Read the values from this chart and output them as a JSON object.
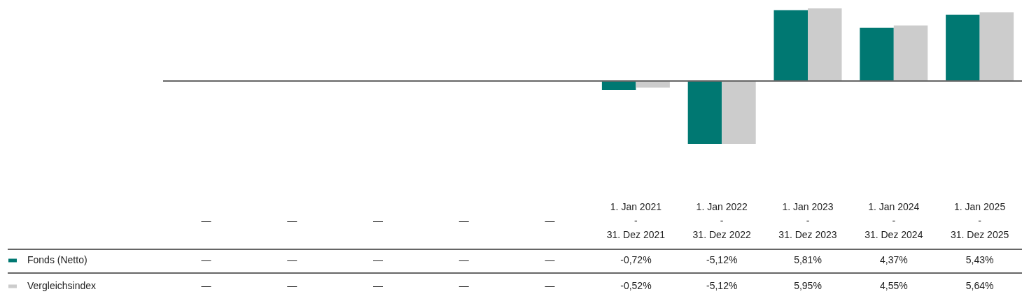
{
  "chart_data": {
    "type": "bar",
    "categories": [
      "—",
      "—",
      "—",
      "—",
      "—",
      "1. Jan 2021\n-\n31. Dez 2021",
      "1. Jan 2022\n-\n31. Dez 2022",
      "1. Jan 2023\n-\n31. Dez 2023",
      "1. Jan 2024\n-\n31. Dez 2024",
      "1. Jan 2025\n-\n31. Dez 2025"
    ],
    "series": [
      {
        "name": "Fonds (Netto)",
        "color": "#007872",
        "values": [
          null,
          null,
          null,
          null,
          null,
          -0.72,
          -5.12,
          5.81,
          4.37,
          5.43
        ],
        "value_labels": [
          "—",
          "—",
          "—",
          "—",
          "—",
          "-0,72%",
          "-5,12%",
          "5,81%",
          "4,37%",
          "5,43%"
        ]
      },
      {
        "name": "Vergleichsindex",
        "color": "#cccccc",
        "values": [
          null,
          null,
          null,
          null,
          null,
          -0.52,
          -5.12,
          5.95,
          4.55,
          5.64
        ],
        "value_labels": [
          "—",
          "—",
          "—",
          "—",
          "—",
          "-0,52%",
          "-5,12%",
          "5,95%",
          "4,55%",
          "5,64%"
        ]
      }
    ],
    "legend": "bottom left"
  }
}
